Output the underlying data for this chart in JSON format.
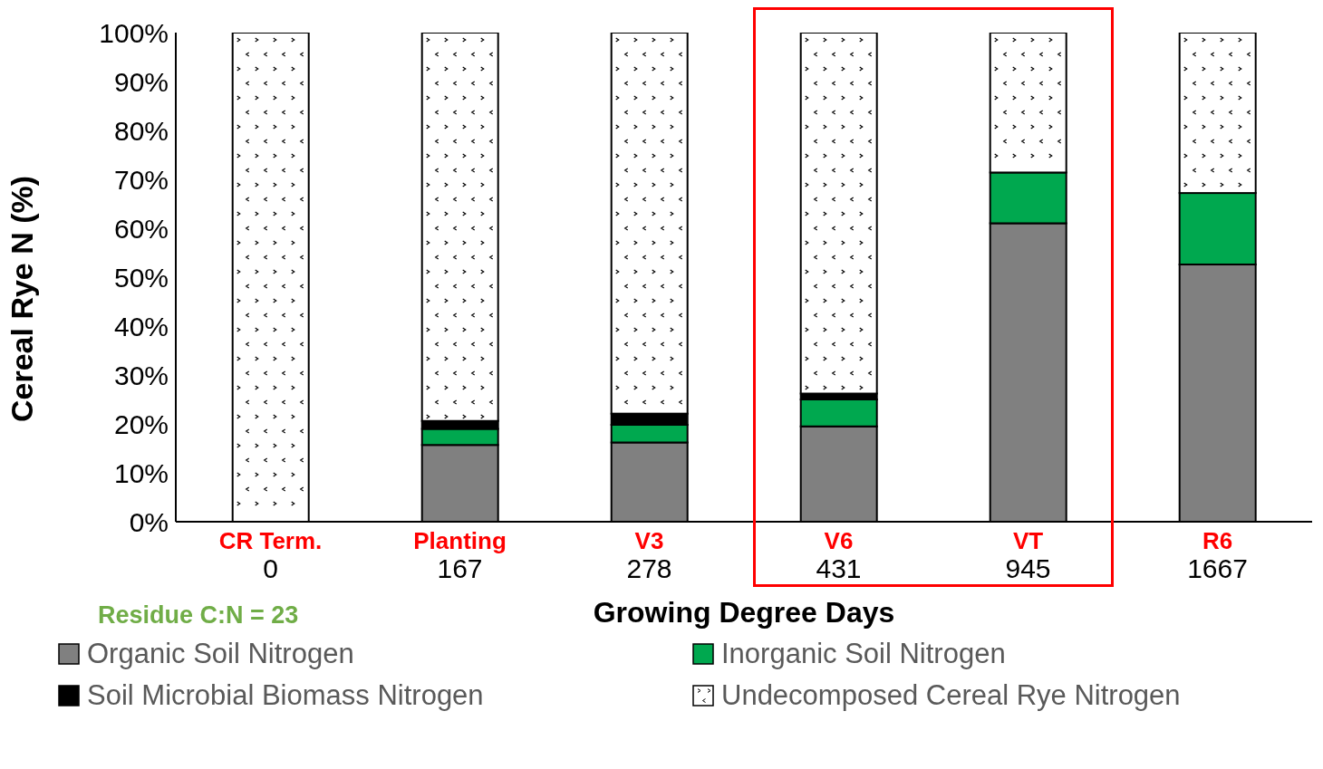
{
  "chart_data": {
    "type": "bar",
    "stacked": true,
    "ylabel": "Cereal Rye N (%)",
    "xlabel": "Growing Degree Days",
    "categories": [
      "CR Term.\n0",
      "Planting\n167",
      "V3\n278",
      "V6\n431",
      "VT\n945",
      "R6\n1667"
    ],
    "series": [
      {
        "name": "Organic Soil Nitrogen",
        "color": "#808080",
        "values": [
          0,
          15.7,
          16.2,
          19.5,
          61,
          52.6
        ]
      },
      {
        "name": "Inorganic Soil Nitrogen",
        "color": "#00a84f",
        "values": [
          0,
          3.3,
          3.6,
          5.5,
          10.4,
          14.6
        ]
      },
      {
        "name": "Soil Microbial Biomass Nitrogen",
        "color": "#000000",
        "values": [
          0,
          1.6,
          2.3,
          1.2,
          0,
          0
        ]
      },
      {
        "name": "Undecomposed Cereal Rye Nitrogen",
        "color": "#ffffff",
        "values": [
          100,
          79.4,
          77.9,
          73.8,
          28.6,
          32.8
        ]
      }
    ],
    "ylim": [
      0,
      100
    ],
    "yticks": [
      {
        "value": 0,
        "label": "0%"
      },
      {
        "value": 10,
        "label": "10%"
      },
      {
        "value": 20,
        "label": "20%"
      },
      {
        "value": 30,
        "label": "30%"
      },
      {
        "value": 40,
        "label": "40%"
      },
      {
        "value": 50,
        "label": "50%"
      },
      {
        "value": 60,
        "label": "60%"
      },
      {
        "value": 70,
        "label": "70%"
      },
      {
        "value": 80,
        "label": "80%"
      },
      {
        "value": 90,
        "label": "90%"
      },
      {
        "value": 100,
        "label": "100%"
      }
    ],
    "annotations": [
      "Residue C:N = 23"
    ],
    "grid": false,
    "legend": "bottom"
  }
}
